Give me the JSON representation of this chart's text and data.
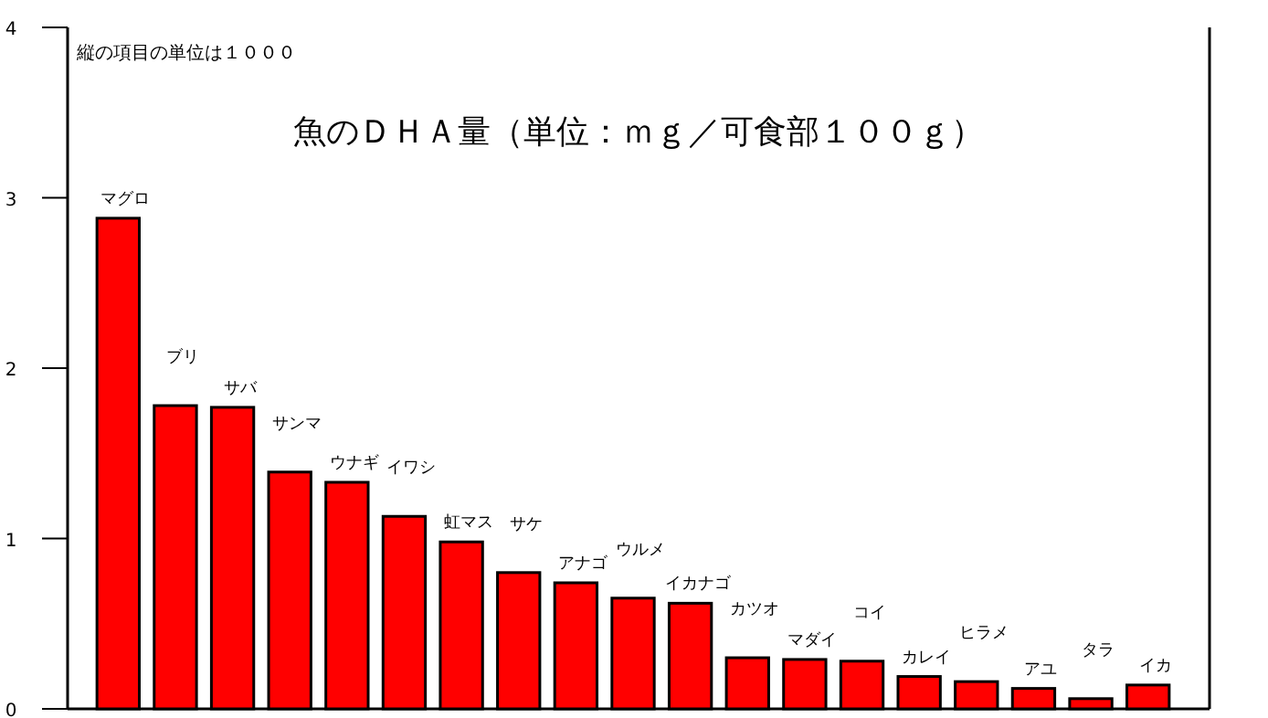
{
  "chart_data": {
    "type": "bar",
    "title": "魚のＤＨＡ量（単位：ｍｇ／可食部１００ｇ）",
    "annotations": [
      "縦の項目の単位は１０００"
    ],
    "categories": [
      "マグロ",
      "ブリ",
      "サバ",
      "サンマ",
      "ウナギ",
      "イワシ",
      "虹マス",
      "サケ",
      "アナゴ",
      "ウルメ",
      "イカナゴ",
      "カツオ",
      "マダイ",
      "コイ",
      "カレイ",
      "ヒラメ",
      "アユ",
      "タラ",
      "イカ"
    ],
    "values": [
      2.88,
      1.78,
      1.77,
      1.39,
      1.33,
      1.13,
      0.98,
      0.8,
      0.74,
      0.65,
      0.62,
      0.3,
      0.29,
      0.28,
      0.19,
      0.16,
      0.12,
      0.06,
      0.14
    ],
    "color": "#ff0000",
    "ylim": [
      0,
      4
    ],
    "yticks": [
      0,
      1,
      2,
      3,
      4
    ]
  }
}
